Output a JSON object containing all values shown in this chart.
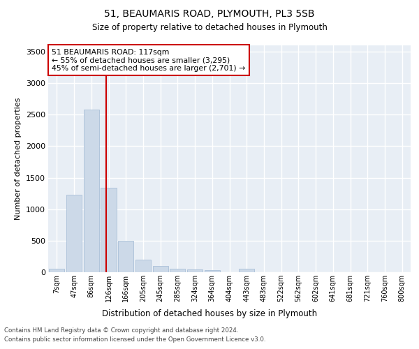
{
  "title_line1": "51, BEAUMARIS ROAD, PLYMOUTH, PL3 5SB",
  "title_line2": "Size of property relative to detached houses in Plymouth",
  "xlabel": "Distribution of detached houses by size in Plymouth",
  "ylabel": "Number of detached properties",
  "bar_color": "#ccd9e8",
  "bar_edge_color": "#aac0d8",
  "background_color": "#e8eef5",
  "grid_color": "#ffffff",
  "categories": [
    "7sqm",
    "47sqm",
    "86sqm",
    "126sqm",
    "166sqm",
    "205sqm",
    "245sqm",
    "285sqm",
    "324sqm",
    "364sqm",
    "404sqm",
    "443sqm",
    "483sqm",
    "522sqm",
    "562sqm",
    "602sqm",
    "641sqm",
    "681sqm",
    "721sqm",
    "760sqm",
    "800sqm"
  ],
  "values": [
    55,
    1225,
    2580,
    1340,
    500,
    195,
    105,
    50,
    45,
    30,
    0,
    55,
    0,
    0,
    0,
    0,
    0,
    0,
    0,
    0,
    0
  ],
  "ylim": [
    0,
    3600
  ],
  "yticks": [
    0,
    500,
    1000,
    1500,
    2000,
    2500,
    3000,
    3500
  ],
  "vline_x": 2.87,
  "annotation_text": "51 BEAUMARIS ROAD: 117sqm\n← 55% of detached houses are smaller (3,295)\n45% of semi-detached houses are larger (2,701) →",
  "annotation_box_color": "#ffffff",
  "annotation_edge_color": "#cc0000",
  "vline_color": "#cc0000",
  "footer_line1": "Contains HM Land Registry data © Crown copyright and database right 2024.",
  "footer_line2": "Contains public sector information licensed under the Open Government Licence v3.0."
}
